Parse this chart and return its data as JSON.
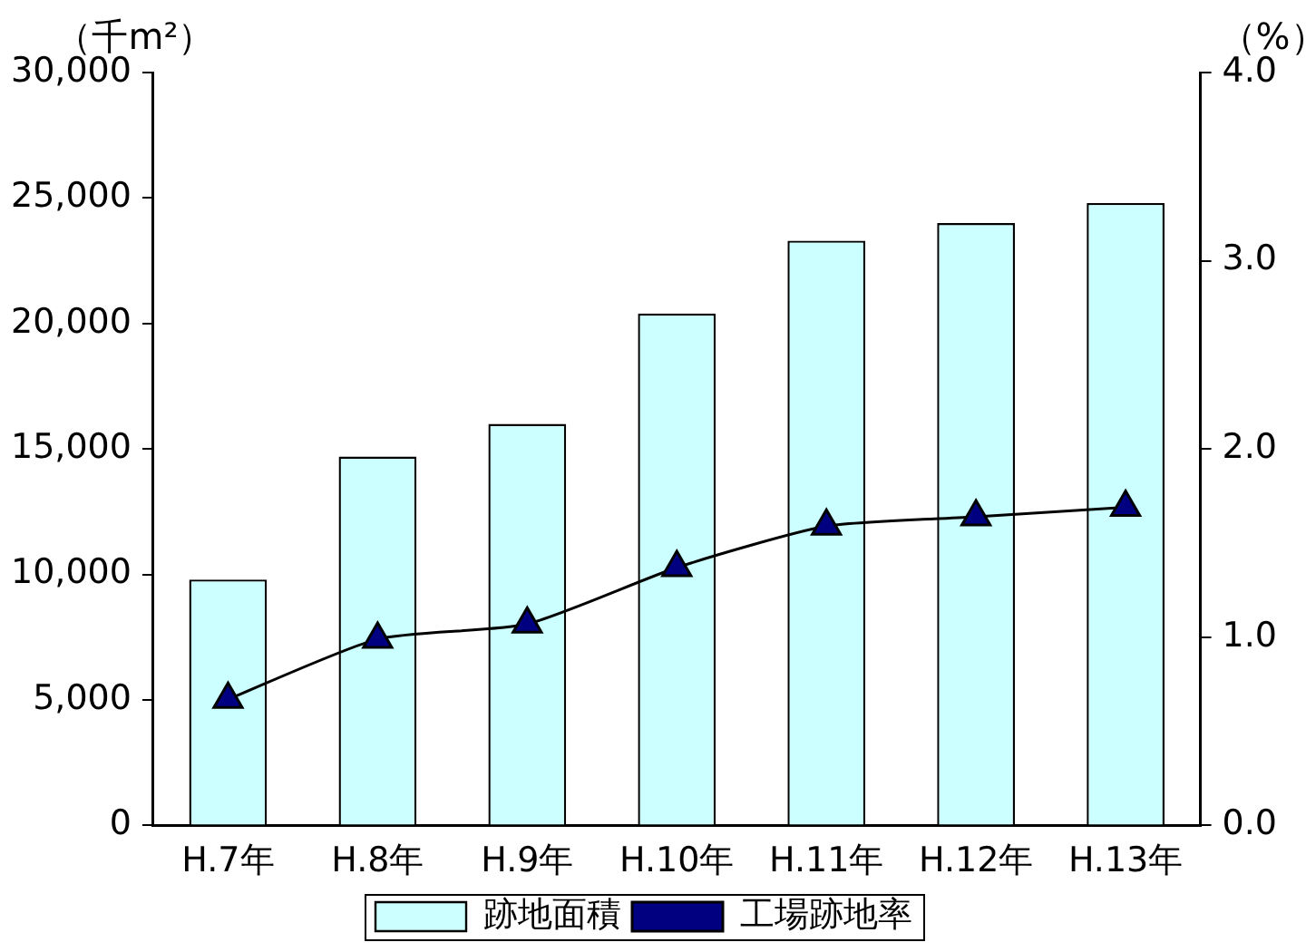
{
  "chart_data": {
    "type": "bar",
    "categories": [
      "H.7年",
      "H.8年",
      "H.9年",
      "H.10年",
      "H.11年",
      "H.12年",
      "H.13年"
    ],
    "ylabel": "（千m²）",
    "y2label": "（%）",
    "series": [
      {
        "name": "跡地面積",
        "color": "#ccffff",
        "values": [
          9800,
          14700,
          16000,
          20400,
          23300,
          24000,
          24800
        ]
      },
      {
        "name": "工場跡地率",
        "type": "line",
        "axis": "y2",
        "color": "#000080",
        "marker": "triangle",
        "values": [
          0.67,
          0.99,
          1.07,
          1.37,
          1.59,
          1.64,
          1.69
        ]
      }
    ],
    "ylim": [
      0,
      30000
    ],
    "yticks": [
      {
        "value": 0,
        "label": "0"
      },
      {
        "value": 5000,
        "label": "5,000"
      },
      {
        "value": 10000,
        "label": "10,000"
      },
      {
        "value": 15000,
        "label": "15,000"
      },
      {
        "value": 20000,
        "label": "20,000"
      },
      {
        "value": 25000,
        "label": "25,000"
      },
      {
        "value": 30000,
        "label": "30,000"
      }
    ],
    "y2lim": [
      0,
      4
    ],
    "y2ticks": [
      {
        "value": 0,
        "label": "0.0"
      },
      {
        "value": 1,
        "label": "1.0"
      },
      {
        "value": 2,
        "label": "2.0"
      },
      {
        "value": 3,
        "label": "3.0"
      },
      {
        "value": 4,
        "label": "4.0"
      }
    ],
    "grid": false,
    "legend": "bottom"
  }
}
